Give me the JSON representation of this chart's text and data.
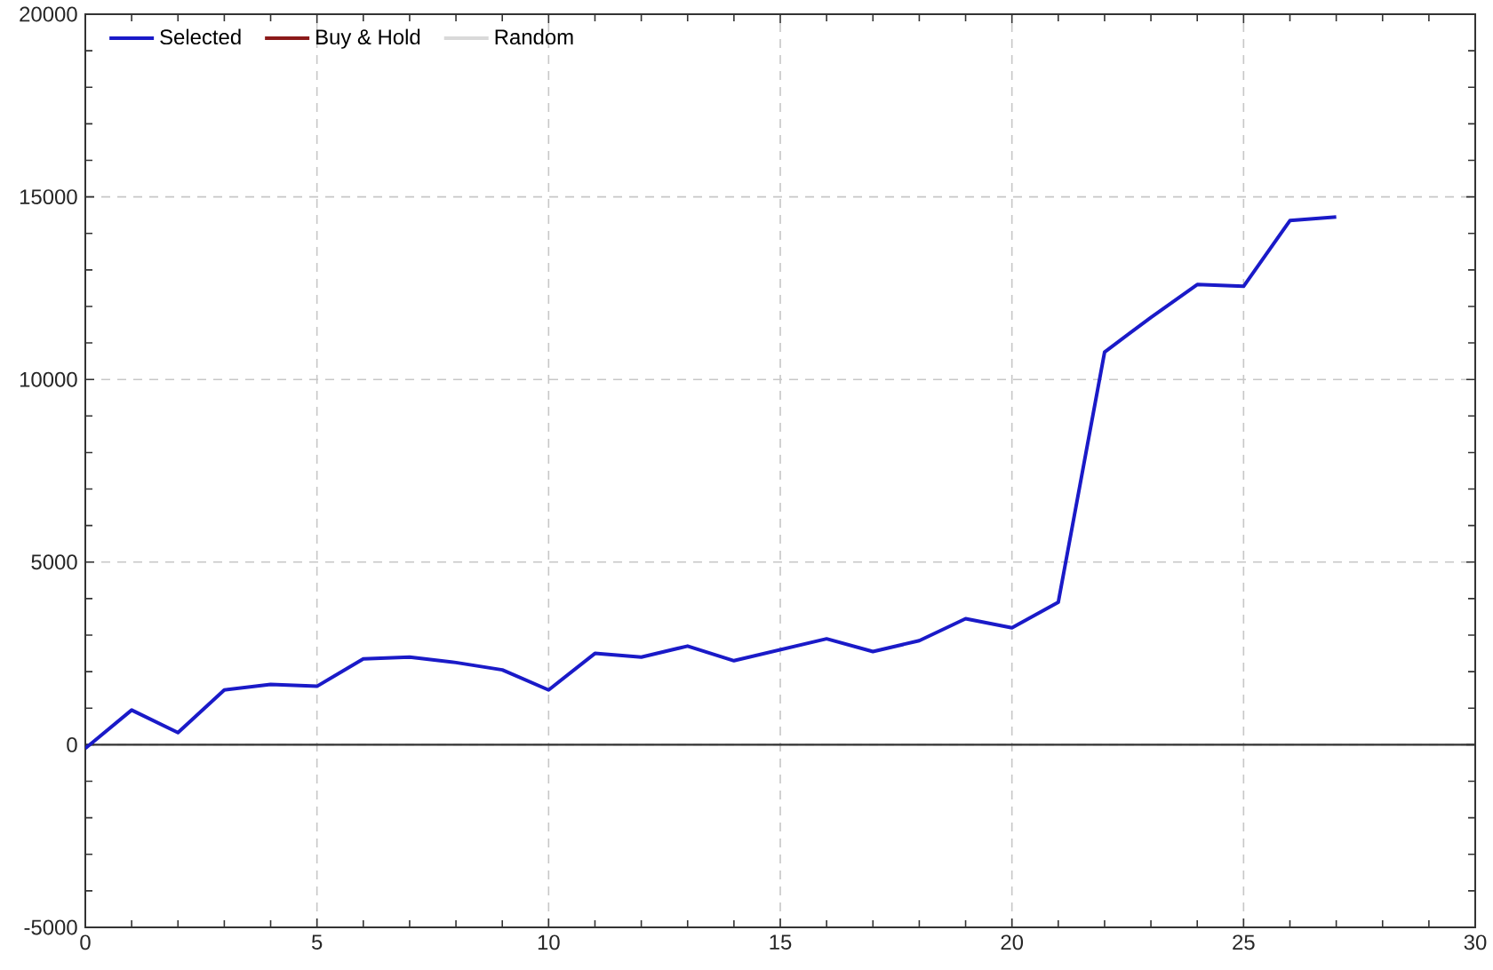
{
  "chart_data": {
    "type": "line",
    "x": [
      0,
      1,
      2,
      3,
      4,
      5,
      6,
      7,
      8,
      9,
      10,
      11,
      12,
      13,
      14,
      15,
      16,
      17,
      18,
      19,
      20,
      21,
      22,
      23,
      24,
      25,
      26,
      27
    ],
    "series": [
      {
        "name": "Selected",
        "color": "#1a1ac8",
        "values": [
          -100,
          950,
          330,
          1500,
          1650,
          1600,
          2350,
          2400,
          2250,
          2050,
          1500,
          2500,
          2400,
          2700,
          2300,
          2600,
          2900,
          2550,
          2850,
          3450,
          3200,
          3900,
          10750,
          11700,
          12600,
          12550,
          14350,
          14450
        ]
      },
      {
        "name": "Buy & Hold",
        "color": "#8b1a1a",
        "values": [
          null,
          null,
          null,
          null,
          null,
          null,
          null,
          null,
          null,
          null,
          null,
          null,
          null,
          null,
          null,
          null,
          null,
          null,
          null,
          null,
          null,
          null,
          null,
          null,
          null,
          null,
          null,
          null
        ]
      },
      {
        "name": "Random",
        "color": "#d9d9d9",
        "values": [
          null,
          null,
          null,
          null,
          null,
          null,
          null,
          null,
          null,
          null,
          null,
          null,
          null,
          null,
          null,
          null,
          null,
          null,
          null,
          null,
          null,
          null,
          null,
          null,
          null,
          null,
          null,
          null
        ]
      }
    ],
    "xlim": [
      0,
      30
    ],
    "xticks": [
      0,
      5,
      10,
      15,
      20,
      25,
      30
    ],
    "ylim": [
      -5000,
      20000
    ],
    "yticks": [
      -5000,
      0,
      5000,
      10000,
      15000,
      20000
    ],
    "grid": true,
    "legend": "top left",
    "ref_lines": [
      {
        "axis": "y",
        "value": 0,
        "color": "#333333"
      }
    ]
  }
}
